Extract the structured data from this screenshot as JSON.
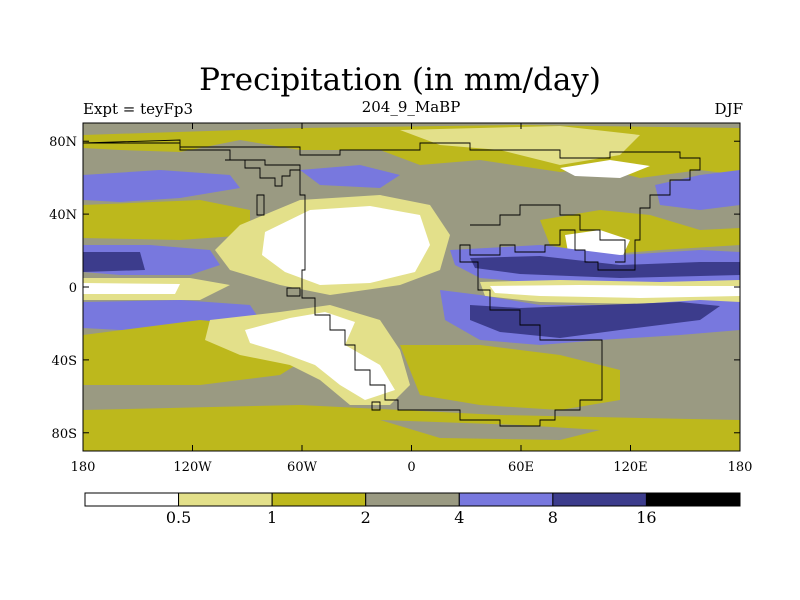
{
  "title": "Precipitation (in mm/day)",
  "subtitle_left": "Expt = teyFp3",
  "subtitle_center": "204_9_MaBP",
  "subtitle_right": "DJF",
  "x_ticks": [
    {
      "value": -180,
      "label": "180"
    },
    {
      "value": -120,
      "label": "120W"
    },
    {
      "value": -60,
      "label": "60W"
    },
    {
      "value": 0,
      "label": "0"
    },
    {
      "value": 60,
      "label": "60E"
    },
    {
      "value": 120,
      "label": "120E"
    },
    {
      "value": 180,
      "label": "180"
    }
  ],
  "y_ticks": [
    {
      "value": 80,
      "label": "80N"
    },
    {
      "value": 40,
      "label": "40N"
    },
    {
      "value": 0,
      "label": "0"
    },
    {
      "value": -40,
      "label": "40S"
    },
    {
      "value": -80,
      "label": "80S"
    }
  ],
  "colorbar": {
    "colors": [
      "#ffffff",
      "#e3e08a",
      "#bdb81c",
      "#9a9a82",
      "#7878de",
      "#3c3c8c",
      "#000000"
    ],
    "labels": [
      "0.5",
      "1",
      "2",
      "4",
      "8",
      "16"
    ]
  }
}
